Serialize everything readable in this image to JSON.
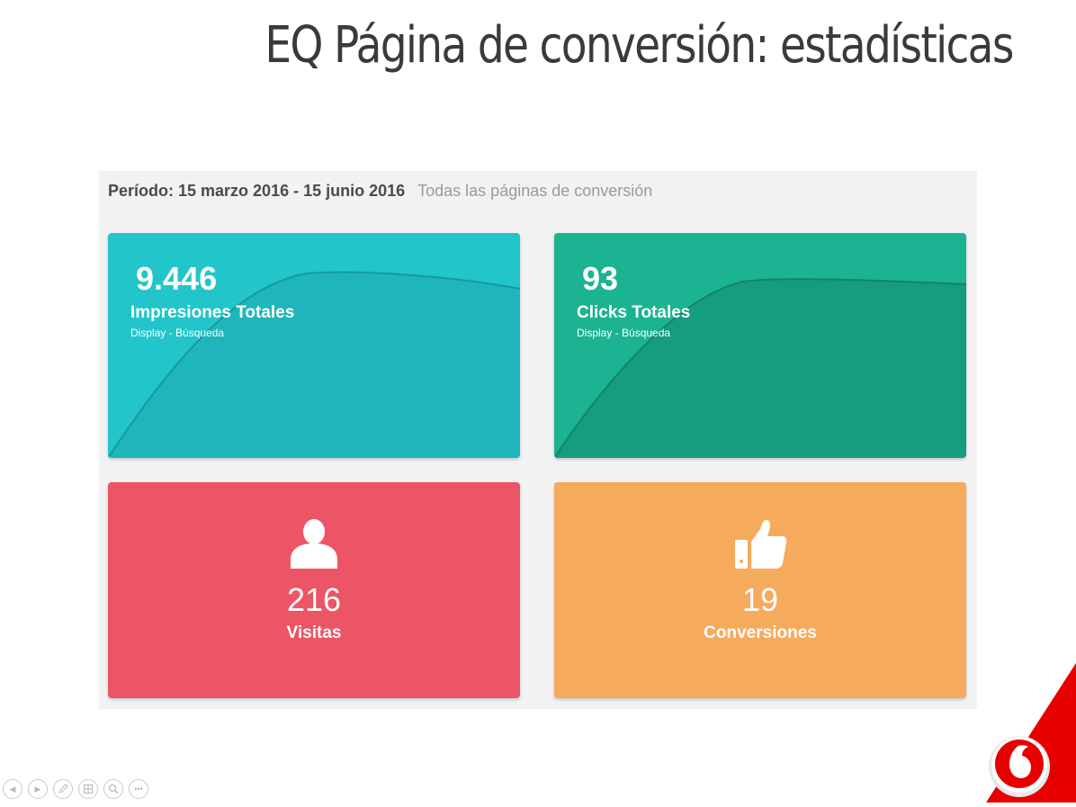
{
  "slide": {
    "title": "EQ Página de conversión: estadísticas"
  },
  "dashboard": {
    "period": "Período: 15 marzo 2016 - 15 junio 2016",
    "scope": "Todas las páginas de conversión",
    "cards": {
      "impressions": {
        "value": "9.446",
        "label": "Impresiones Totales",
        "sub": "Display - Búsqueda",
        "color": "#22c5c9"
      },
      "clicks": {
        "value": "93",
        "label": "Clicks Totales",
        "sub": "Display - Búsqueda",
        "color": "#1bb391"
      },
      "visits": {
        "value": "216",
        "label": "Visitas",
        "icon": "user-icon",
        "color": "#ec5565"
      },
      "conversions": {
        "value": "19",
        "label": "Conversiones",
        "icon": "thumbs-up-icon",
        "color": "#f6aa5c"
      }
    }
  },
  "navigation": {
    "controls": [
      "previous-icon",
      "next-icon",
      "pen-icon",
      "slides-icon",
      "zoom-icon",
      "more-icon"
    ]
  },
  "brand": {
    "logo": "vodafone-logo",
    "color": "#e60000"
  }
}
